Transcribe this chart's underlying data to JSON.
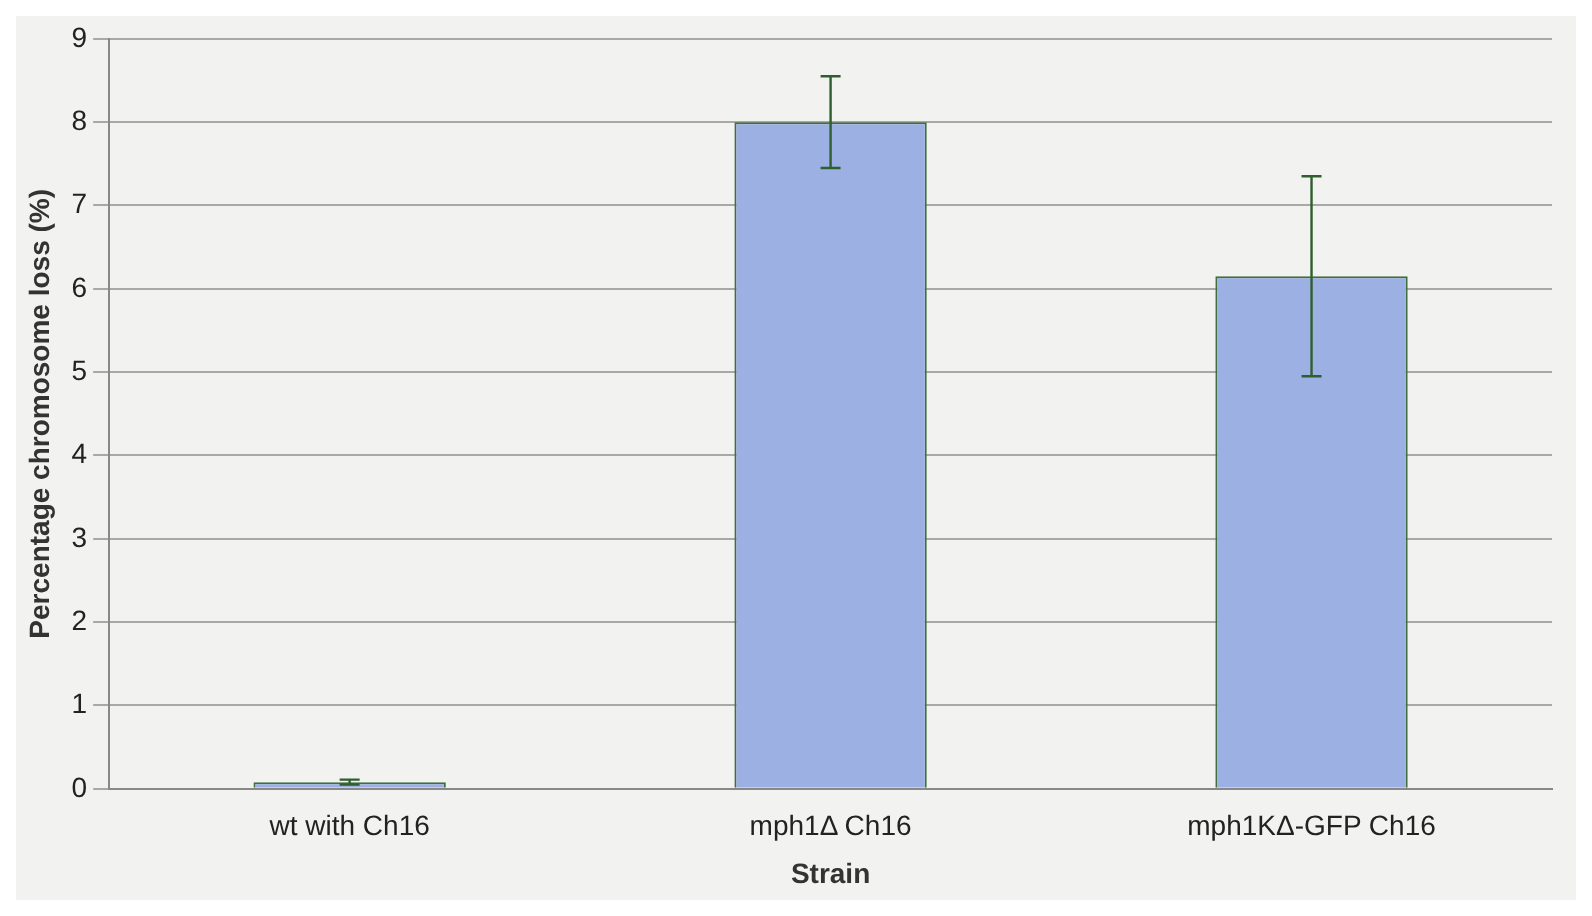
{
  "chart_data": {
    "type": "bar",
    "xlabel": "Strain",
    "ylabel": "Percentage chromosome loss (%)",
    "categories": [
      "wt with Ch16",
      "mph1Δ Ch16",
      "mph1KΔ-GFP Ch16"
    ],
    "values": [
      0.08,
      8.0,
      6.15
    ],
    "errors": [
      0.03,
      0.55,
      1.2
    ],
    "color": "#9db0e3",
    "ylim": [
      0,
      9
    ],
    "yticks": [
      0,
      1,
      2,
      3,
      4,
      5,
      6,
      7,
      8,
      9
    ],
    "grid": "y",
    "legend": false
  }
}
